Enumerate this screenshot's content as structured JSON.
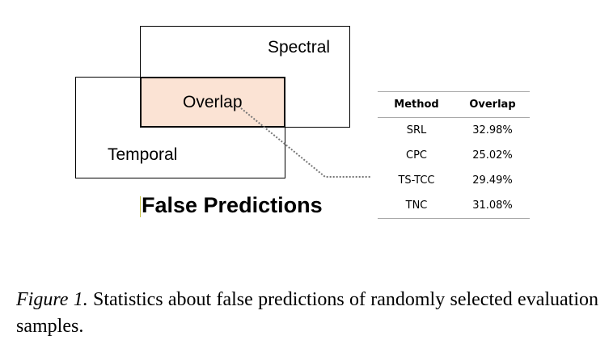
{
  "diagram": {
    "spectral_label": "Spectral",
    "overlap_label": "Overlap",
    "temporal_label": "Temporal",
    "title": "False Predictions",
    "overlap_fill": "#fbe3d4"
  },
  "table": {
    "headers": [
      "Method",
      "Overlap"
    ],
    "rows": [
      [
        "SRL",
        "32.98%"
      ],
      [
        "CPC",
        "25.02%"
      ],
      [
        "TS-TCC",
        "29.49%"
      ],
      [
        "TNC",
        "31.08%"
      ]
    ]
  },
  "caption": {
    "figure_label": "Figure 1.",
    "text": " Statistics about false predictions of randomly selected evaluation samples."
  }
}
